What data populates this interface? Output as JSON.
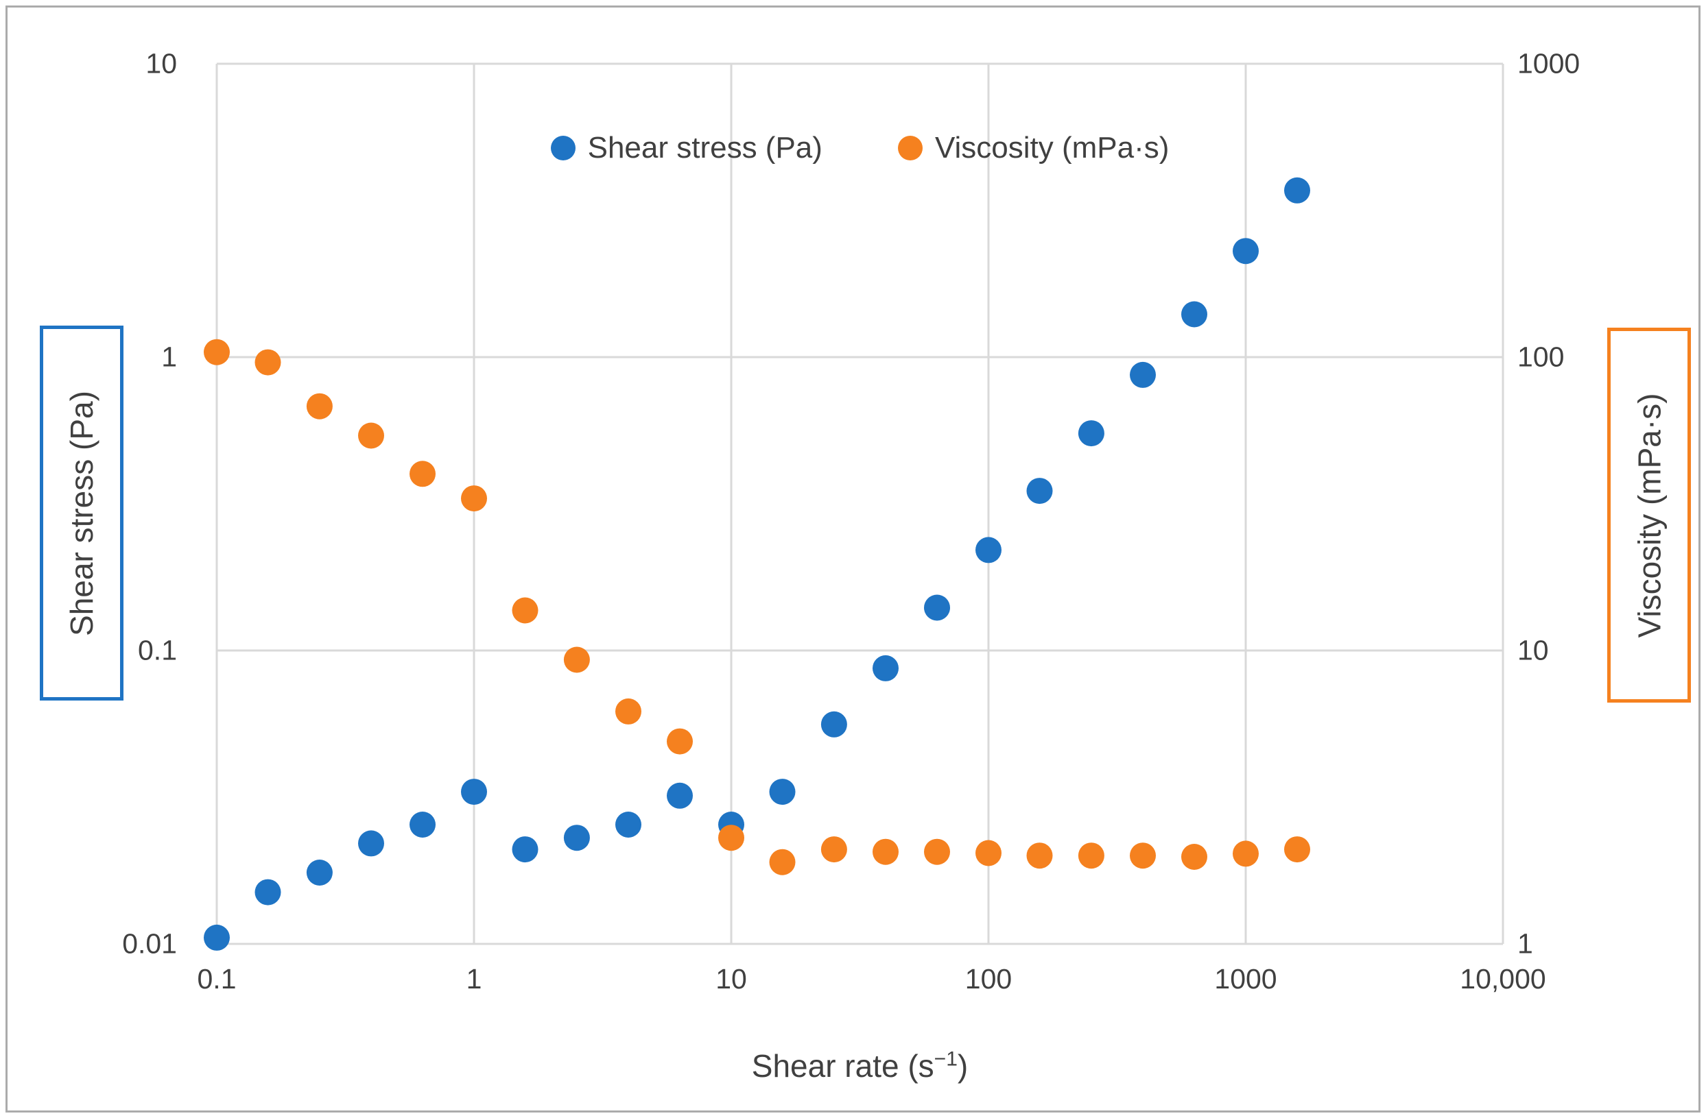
{
  "legend": {
    "items": [
      {
        "id": "shear-stress",
        "label": "Shear stress (Pa)",
        "color": "#1F74C4"
      },
      {
        "id": "viscosity",
        "label": "Viscosity (mPa·s)",
        "color": "#F5811F"
      }
    ]
  },
  "axes": {
    "x": {
      "title_pre": "Shear rate (s",
      "title_sup": "−1",
      "title_post": ")",
      "ticks": [
        {
          "v": 0.1,
          "label": "0.1"
        },
        {
          "v": 1,
          "label": "1"
        },
        {
          "v": 10,
          "label": "10"
        },
        {
          "v": 100,
          "label": "100"
        },
        {
          "v": 1000,
          "label": "1000"
        },
        {
          "v": 10000,
          "label": "10,000"
        }
      ]
    },
    "left": {
      "title": "Shear stress (Pa)",
      "ticks": [
        {
          "v": 10,
          "label": "10"
        },
        {
          "v": 1,
          "label": "1"
        },
        {
          "v": 0.1,
          "label": "0.1"
        },
        {
          "v": 0.01,
          "label": "0.01"
        }
      ]
    },
    "right": {
      "title": "Viscosity (mPa·s)",
      "ticks": [
        {
          "v": 1000,
          "label": "1000"
        },
        {
          "v": 100,
          "label": "100"
        },
        {
          "v": 10,
          "label": "10"
        },
        {
          "v": 1,
          "label": "1"
        }
      ]
    }
  },
  "chart_data": {
    "type": "scatter",
    "x_scale": "log",
    "y_scale": "log",
    "grid": true,
    "legend_position": "top-center",
    "xlabel": "Shear rate (s⁻¹)",
    "xlim": [
      0.1,
      10000
    ],
    "left_ylim": [
      0.01,
      10
    ],
    "right_ylim": [
      1,
      1000
    ],
    "x": [
      0.1,
      0.158,
      0.251,
      0.398,
      0.631,
      1,
      1.58,
      2.51,
      3.98,
      6.31,
      10,
      15.8,
      25.1,
      39.8,
      63.1,
      100,
      158,
      251,
      398,
      631,
      1000,
      1585
    ],
    "series": [
      {
        "name": "Shear stress (Pa)",
        "axis": "left",
        "color": "#1F74C4",
        "values": [
          0.0105,
          0.015,
          0.0175,
          0.022,
          0.0255,
          0.033,
          0.021,
          0.023,
          0.0255,
          0.032,
          0.0255,
          0.033,
          0.056,
          0.087,
          0.14,
          0.22,
          0.35,
          0.55,
          0.87,
          1.4,
          2.3,
          3.7
        ]
      },
      {
        "name": "Viscosity (mPa·s)",
        "axis": "right",
        "color": "#F5811F",
        "values": [
          104,
          96,
          68,
          54,
          40,
          33,
          13.7,
          9.3,
          6.2,
          4.9,
          2.3,
          1.9,
          2.1,
          2.06,
          2.06,
          2.04,
          2.0,
          2.0,
          2.0,
          1.98,
          2.03,
          2.1
        ]
      }
    ],
    "colors": {
      "gridline": "#D9D9D9",
      "text": "#404040",
      "frame": "#ABABAB"
    }
  }
}
